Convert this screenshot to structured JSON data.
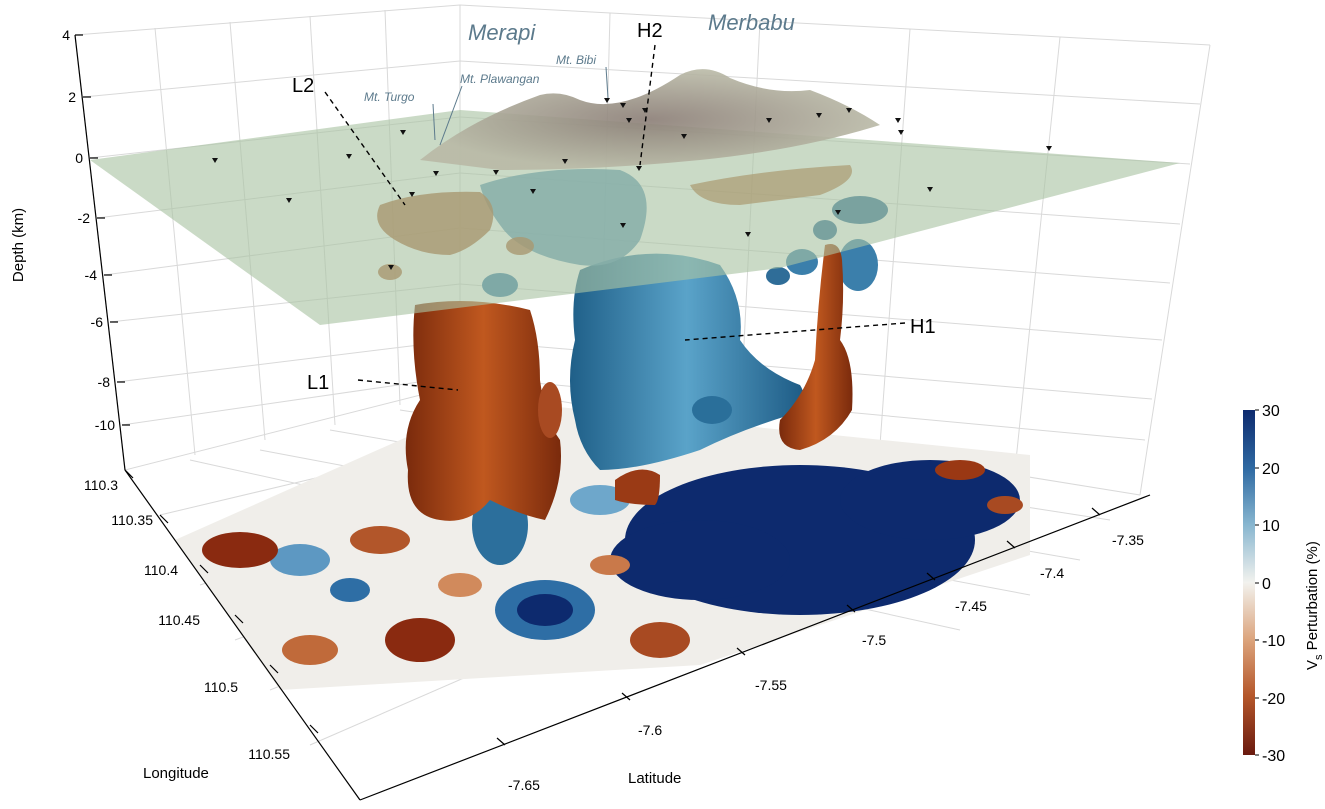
{
  "chart_data": {
    "type": "3d-tomography",
    "zlabel": "Depth (km)",
    "xlabel": "Longitude",
    "ylabel": "Latitude",
    "z_ticks": [
      "4",
      "2",
      "0",
      "-2",
      "-4",
      "-6",
      "-8",
      "-10"
    ],
    "z_range": [
      -11,
      4
    ],
    "x_ticks": [
      "110.3",
      "110.35",
      "110.4",
      "110.45",
      "110.5",
      "110.55"
    ],
    "x_range": [
      110.3,
      110.58
    ],
    "y_ticks": [
      "-7.35",
      "-7.4",
      "-7.45",
      "-7.5",
      "-7.55",
      "-7.6",
      "-7.65"
    ],
    "y_range": [
      -7.67,
      -7.33
    ],
    "volcanoes": {
      "merapi": "Merapi",
      "merbabu": "Merbabu",
      "turgo": "Mt. Turgo",
      "plawangan": "Mt. Plawangan",
      "bibi": "Mt. Bibi"
    },
    "anomalies": {
      "L1": "L1",
      "L2": "L2",
      "H1": "H1",
      "H2": "H2"
    },
    "colorbar": {
      "label_main": "V",
      "label_sub": "s",
      "label_rest": " Perturbation (%)",
      "ticks": [
        "30",
        "20",
        "10",
        "0",
        "-10",
        "-20",
        "-30"
      ],
      "range": [
        -30,
        30
      ],
      "colors": {
        "max": "#0d2a6e",
        "high": "#3a7fb0",
        "mid": "#f2f2ee",
        "low": "#c46a35",
        "min": "#6a1a0f"
      }
    }
  }
}
